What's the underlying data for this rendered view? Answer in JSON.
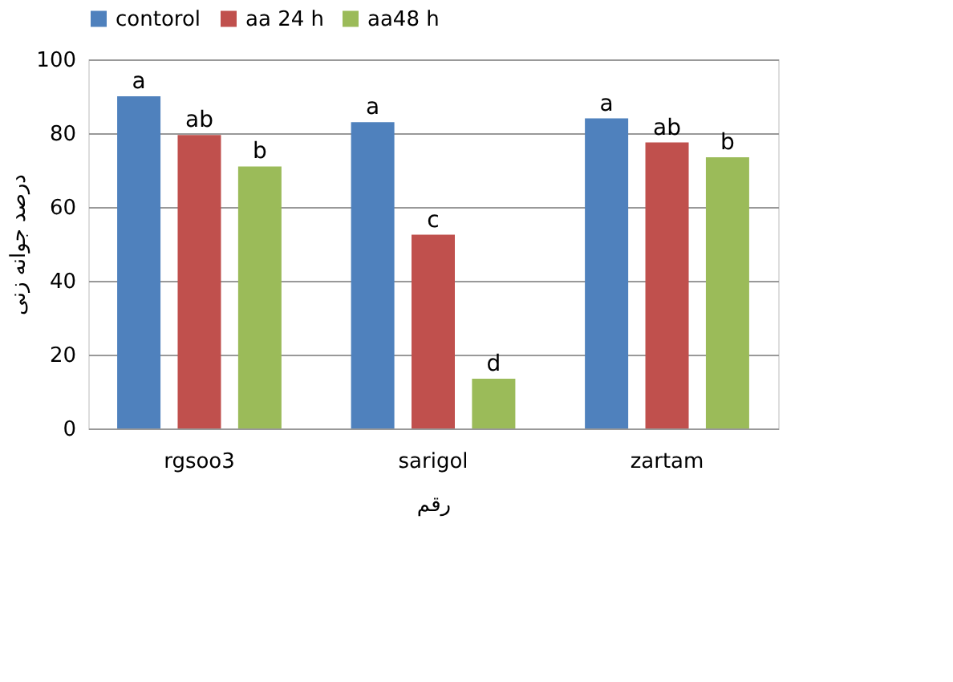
{
  "chart_data": {
    "type": "bar",
    "categories": [
      "rgsoo3",
      "sarigol",
      "zartam"
    ],
    "series": [
      {
        "name": "contorol",
        "color": "#4f81bd",
        "values": [
          90,
          83,
          84
        ],
        "value_labels": [
          "a",
          "a",
          "a"
        ]
      },
      {
        "name": "aa 24 h",
        "color": "#c0504d",
        "values": [
          79.5,
          52.5,
          77.5
        ],
        "value_labels": [
          "ab",
          "c",
          "ab"
        ]
      },
      {
        "name": "aa48 h",
        "color": "#9bbb59",
        "values": [
          71,
          13.5,
          73.5
        ],
        "value_labels": [
          "b",
          "d",
          "b"
        ]
      }
    ],
    "xlabel": "رقم",
    "ylabel": "درصد جوانه زنی",
    "ylim": [
      0,
      100
    ],
    "yticks": [
      0,
      20,
      40,
      60,
      80,
      100
    ],
    "grid": "y",
    "legend": "top"
  }
}
